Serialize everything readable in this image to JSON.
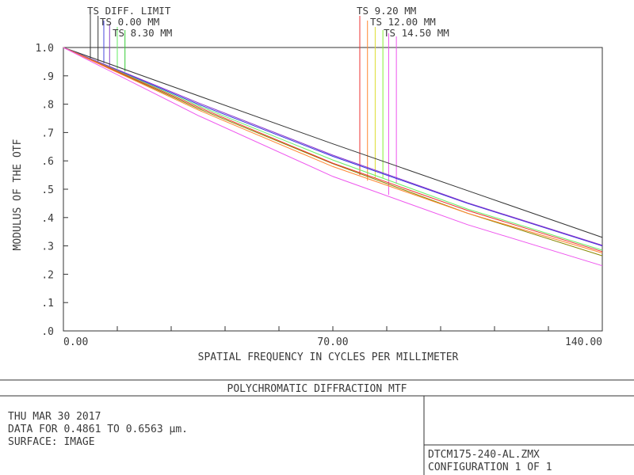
{
  "chart_data": {
    "type": "line",
    "title": "POLYCHROMATIC DIFFRACTION MTF",
    "xlabel": "SPATIAL FREQUENCY IN CYCLES PER MILLIMETER",
    "ylabel": "MODULUS OF THE OTF",
    "xlim": [
      0,
      140
    ],
    "ylim": [
      0,
      1
    ],
    "x_tick_labels": [
      {
        "value": 0,
        "label": "0.00"
      },
      {
        "value": 70,
        "label": "70.00"
      },
      {
        "value": 140,
        "label": "140.00"
      }
    ],
    "x_minor_ticks": [
      14,
      28,
      42,
      56,
      84,
      98,
      112,
      126
    ],
    "y_tick_labels": [
      {
        "value": 1.0,
        "label": "1.0"
      },
      {
        "value": 0.9,
        "label": ".9"
      },
      {
        "value": 0.8,
        "label": ".8"
      },
      {
        "value": 0.7,
        "label": ".7"
      },
      {
        "value": 0.6,
        "label": ".6"
      },
      {
        "value": 0.5,
        "label": ".5"
      },
      {
        "value": 0.4,
        "label": ".4"
      },
      {
        "value": 0.3,
        "label": ".3"
      },
      {
        "value": 0.2,
        "label": ".2"
      },
      {
        "value": 0.1,
        "label": ".1"
      },
      {
        "value": 0.0,
        "label": ".0"
      }
    ],
    "legend_groups": [
      {
        "label": "TS DIFF. LIMIT",
        "x_at": 7.0,
        "leader_color": "#333333"
      },
      {
        "label": "TS 0.00 MM",
        "x_at": 9.0,
        "leader_color": "#333333"
      },
      {
        "label": "TS 8.30 MM",
        "x_at": 12.0,
        "leader_color": "#4444dd"
      },
      {
        "label": "TS 9.20 MM",
        "x_at": 77.0,
        "leader_color": "#ee3333"
      },
      {
        "label": "TS 12.00 MM",
        "x_at": 80.0,
        "leader_color": "#dddd33"
      },
      {
        "label": "TS 14.50 MM",
        "x_at": 84.0,
        "leader_color": "#ee55ee"
      }
    ],
    "legend_leaders": [
      {
        "x": 7.0,
        "y": 0.96,
        "color": "#333333"
      },
      {
        "x": 9.0,
        "y": 0.952,
        "color": "#333333"
      },
      {
        "x": 10.5,
        "y": 0.945,
        "color": "#4444dd"
      },
      {
        "x": 12.0,
        "y": 0.935,
        "color": "#8844cc"
      },
      {
        "x": 14.0,
        "y": 0.925,
        "color": "#66ee66"
      },
      {
        "x": 16.0,
        "y": 0.915,
        "color": "#33cc33"
      },
      {
        "x": 77.0,
        "y": 0.55,
        "color": "#ee3333"
      },
      {
        "x": 79.0,
        "y": 0.53,
        "color": "#ff8833"
      },
      {
        "x": 81.0,
        "y": 0.54,
        "color": "#dddd33"
      },
      {
        "x": 83.0,
        "y": 0.54,
        "color": "#88ee33"
      },
      {
        "x": 84.5,
        "y": 0.48,
        "color": "#ee55ee"
      },
      {
        "x": 86.5,
        "y": 0.52,
        "color": "#ee55ee"
      }
    ],
    "series": [
      {
        "color": "#333333",
        "x": [
          0,
          35,
          70,
          105,
          140
        ],
        "y": [
          1.0,
          0.83,
          0.66,
          0.495,
          0.33
        ]
      },
      {
        "color": "#3333dd",
        "x": [
          0,
          35,
          70,
          105,
          140
        ],
        "y": [
          1.0,
          0.8,
          0.616,
          0.45,
          0.3
        ]
      },
      {
        "color": "#8833cc",
        "x": [
          0,
          35,
          70,
          105,
          140
        ],
        "y": [
          1.0,
          0.805,
          0.62,
          0.452,
          0.302
        ]
      },
      {
        "color": "#66ee66",
        "x": [
          0,
          35,
          70,
          105,
          140
        ],
        "y": [
          1.0,
          0.795,
          0.603,
          0.43,
          0.285
        ]
      },
      {
        "color": "#888800",
        "x": [
          0,
          35,
          70,
          105,
          140
        ],
        "y": [
          1.0,
          0.785,
          0.59,
          0.415,
          0.265
        ]
      },
      {
        "color": "#ee3333",
        "x": [
          0,
          35,
          70,
          105,
          140
        ],
        "y": [
          1.0,
          0.79,
          0.592,
          0.425,
          0.28
        ]
      },
      {
        "color": "#ff8833",
        "x": [
          0,
          35,
          70,
          105,
          140
        ],
        "y": [
          1.0,
          0.78,
          0.58,
          0.415,
          0.275
        ]
      },
      {
        "color": "#ee55ee",
        "x": [
          0,
          35,
          70,
          105,
          140
        ],
        "y": [
          1.0,
          0.76,
          0.545,
          0.375,
          0.23
        ]
      }
    ]
  },
  "footer": {
    "date": "THU MAR 30 2017",
    "data_range": "DATA FOR 0.4861 TO 0.6563 µm.",
    "surface": "SURFACE: IMAGE",
    "filename": "DTCM175-240-AL.ZMX",
    "configuration": "CONFIGURATION 1 OF 1"
  }
}
